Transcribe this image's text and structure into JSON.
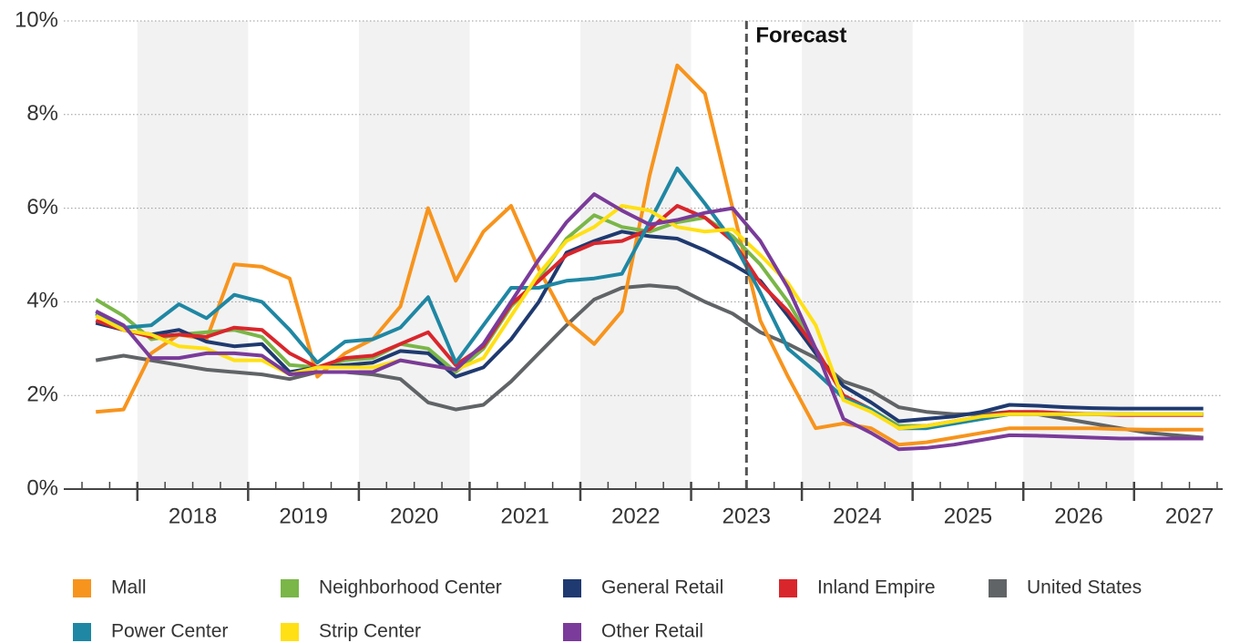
{
  "chart_data": {
    "type": "line",
    "x": [
      2017.625,
      2017.875,
      2018.125,
      2018.375,
      2018.625,
      2018.875,
      2019.125,
      2019.375,
      2019.625,
      2019.875,
      2020.125,
      2020.375,
      2020.625,
      2020.875,
      2021.125,
      2021.375,
      2021.625,
      2021.875,
      2022.125,
      2022.375,
      2022.625,
      2022.875,
      2023.125,
      2023.375,
      2023.625,
      2023.875,
      2024.125,
      2024.375,
      2024.625,
      2024.875,
      2025.125,
      2025.375,
      2025.625,
      2025.875,
      2026.125,
      2026.375,
      2026.625,
      2026.875,
      2027.125,
      2027.375,
      2027.625
    ],
    "xlim": [
      2017.5,
      2027.8
    ],
    "xticks": [
      {
        "value": 2018.5,
        "label": "2018"
      },
      {
        "value": 2019.5,
        "label": "2019"
      },
      {
        "value": 2020.5,
        "label": "2020"
      },
      {
        "value": 2021.5,
        "label": "2021"
      },
      {
        "value": 2022.5,
        "label": "2022"
      },
      {
        "value": 2023.5,
        "label": "2023"
      },
      {
        "value": 2024.5,
        "label": "2024"
      },
      {
        "value": 2025.5,
        "label": "2025"
      },
      {
        "value": 2026.5,
        "label": "2026"
      },
      {
        "value": 2027.5,
        "label": "2027"
      }
    ],
    "ylim": [
      0,
      10
    ],
    "yticks": [
      {
        "value": 0,
        "label": "0%"
      },
      {
        "value": 2,
        "label": "2%"
      },
      {
        "value": 4,
        "label": "4%"
      },
      {
        "value": 6,
        "label": "6%"
      },
      {
        "value": 8,
        "label": "8%"
      },
      {
        "value": 10,
        "label": "10%"
      }
    ],
    "grid": true,
    "shaded_alternate_years": true,
    "annotation": {
      "text": "Forecast",
      "x": 2023.5
    },
    "legend": "bottom",
    "series": [
      {
        "name": "Mall",
        "color": "#f7941d",
        "values": [
          1.65,
          1.7,
          2.9,
          3.3,
          3.2,
          4.8,
          4.75,
          4.5,
          2.4,
          2.9,
          3.2,
          3.9,
          6.0,
          4.45,
          5.5,
          6.05,
          4.7,
          3.6,
          3.1,
          3.8,
          6.7,
          9.05,
          8.45,
          6.0,
          3.6,
          2.4,
          1.3,
          1.4,
          1.3,
          0.95,
          1.0,
          1.1,
          1.2,
          1.3,
          1.3,
          1.3,
          1.3,
          1.28,
          1.27,
          1.27,
          1.27
        ]
      },
      {
        "name": "Neighborhood Center",
        "color": "#7ab648",
        "values": [
          4.05,
          3.7,
          3.2,
          3.3,
          3.35,
          3.4,
          3.25,
          2.65,
          2.6,
          2.75,
          2.8,
          3.1,
          3.0,
          2.5,
          3.0,
          3.9,
          4.5,
          5.35,
          5.85,
          5.6,
          5.5,
          5.7,
          5.8,
          5.4,
          4.8,
          4.0,
          3.0,
          2.0,
          1.7,
          1.35,
          1.35,
          1.4,
          1.5,
          1.6,
          1.6,
          1.6,
          1.6,
          1.6,
          1.6,
          1.6,
          1.6
        ]
      },
      {
        "name": "General Retail",
        "color": "#1f3a70",
        "values": [
          3.55,
          3.4,
          3.3,
          3.4,
          3.15,
          3.05,
          3.1,
          2.5,
          2.6,
          2.65,
          2.7,
          2.95,
          2.9,
          2.4,
          2.6,
          3.2,
          4.0,
          5.05,
          5.3,
          5.5,
          5.4,
          5.35,
          5.1,
          4.8,
          4.45,
          3.7,
          2.9,
          2.2,
          1.85,
          1.45,
          1.5,
          1.55,
          1.65,
          1.8,
          1.78,
          1.75,
          1.73,
          1.72,
          1.72,
          1.72,
          1.72
        ]
      },
      {
        "name": "Inland Empire",
        "color": "#d9262c",
        "values": [
          3.6,
          3.4,
          3.25,
          3.3,
          3.25,
          3.45,
          3.4,
          2.9,
          2.6,
          2.8,
          2.85,
          3.1,
          3.35,
          2.65,
          3.05,
          3.95,
          4.45,
          5.0,
          5.25,
          5.3,
          5.55,
          6.05,
          5.8,
          5.3,
          4.4,
          3.8,
          3.0,
          2.0,
          1.7,
          1.3,
          1.35,
          1.45,
          1.55,
          1.65,
          1.65,
          1.62,
          1.6,
          1.58,
          1.58,
          1.58,
          1.58
        ]
      },
      {
        "name": "United States",
        "color": "#616466",
        "values": [
          2.75,
          2.85,
          2.75,
          2.65,
          2.55,
          2.5,
          2.45,
          2.35,
          2.5,
          2.5,
          2.45,
          2.35,
          1.85,
          1.7,
          1.8,
          2.3,
          2.9,
          3.5,
          4.05,
          4.3,
          4.35,
          4.3,
          4.0,
          3.75,
          3.35,
          3.1,
          2.8,
          2.3,
          2.1,
          1.75,
          1.65,
          1.6,
          1.6,
          1.65,
          1.6,
          1.5,
          1.4,
          1.3,
          1.2,
          1.15,
          1.1
        ]
      },
      {
        "name": "Power Center",
        "color": "#1f87a3",
        "values": [
          3.75,
          3.45,
          3.5,
          3.95,
          3.65,
          4.15,
          4.0,
          3.4,
          2.7,
          3.15,
          3.2,
          3.45,
          4.1,
          2.7,
          3.5,
          4.3,
          4.3,
          4.45,
          4.5,
          4.6,
          5.7,
          6.85,
          6.1,
          5.3,
          4.2,
          3.0,
          2.5,
          1.95,
          1.7,
          1.3,
          1.3,
          1.4,
          1.5,
          1.6,
          1.6,
          1.6,
          1.6,
          1.6,
          1.6,
          1.6,
          1.6
        ]
      },
      {
        "name": "Strip Center",
        "color": "#ffe014",
        "values": [
          3.7,
          3.4,
          3.3,
          3.05,
          3.0,
          2.75,
          2.75,
          2.45,
          2.6,
          2.6,
          2.6,
          2.75,
          2.65,
          2.55,
          2.8,
          3.7,
          4.6,
          5.3,
          5.6,
          6.05,
          5.95,
          5.6,
          5.5,
          5.55,
          5.0,
          4.4,
          3.5,
          1.9,
          1.65,
          1.3,
          1.35,
          1.45,
          1.55,
          1.6,
          1.6,
          1.6,
          1.6,
          1.6,
          1.6,
          1.6,
          1.6
        ]
      },
      {
        "name": "Other Retail",
        "color": "#7a3b9a",
        "values": [
          3.8,
          3.5,
          2.8,
          2.8,
          2.9,
          2.9,
          2.85,
          2.45,
          2.5,
          2.5,
          2.5,
          2.75,
          2.65,
          2.55,
          3.1,
          4.0,
          4.9,
          5.7,
          6.3,
          5.95,
          5.65,
          5.75,
          5.9,
          6.0,
          5.3,
          4.3,
          3.0,
          1.5,
          1.2,
          0.85,
          0.88,
          0.95,
          1.05,
          1.15,
          1.14,
          1.12,
          1.1,
          1.08,
          1.08,
          1.08,
          1.08
        ]
      }
    ]
  }
}
